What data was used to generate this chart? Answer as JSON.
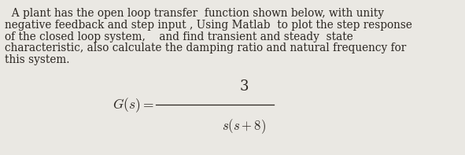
{
  "background_color": "#eae8e3",
  "paragraph_lines": [
    "  A plant has the open loop transfer  function shown below, with unity",
    "negative feedback and step input , Using Matlab  to plot the step response",
    "of the closed loop system,    and find transient and steady  state",
    "characteristic, also calculate the damping ratio and natural frequency for",
    "this system."
  ],
  "formula_lhs": "$G(s) =$",
  "formula_numerator": "3",
  "formula_denominator": "$s(s+8)$",
  "text_color": "#2a2520",
  "font_size_paragraph": 9.8,
  "font_size_formula_lhs": 12.5,
  "font_size_formula_num": 13.0,
  "font_size_formula_den": 12.0,
  "fig_width": 5.91,
  "fig_height": 1.97,
  "dpi": 100
}
